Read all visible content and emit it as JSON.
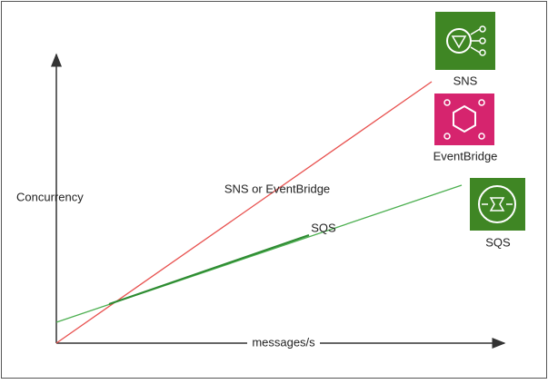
{
  "axes": {
    "y_label": "Concurrency",
    "x_label": "messages/s"
  },
  "lines": [
    {
      "label": "SNS or EventBridge"
    },
    {
      "label": "SQS"
    }
  ],
  "icons": [
    {
      "label": "SNS"
    },
    {
      "label": "EventBridge"
    },
    {
      "label": "SQS"
    }
  ]
}
